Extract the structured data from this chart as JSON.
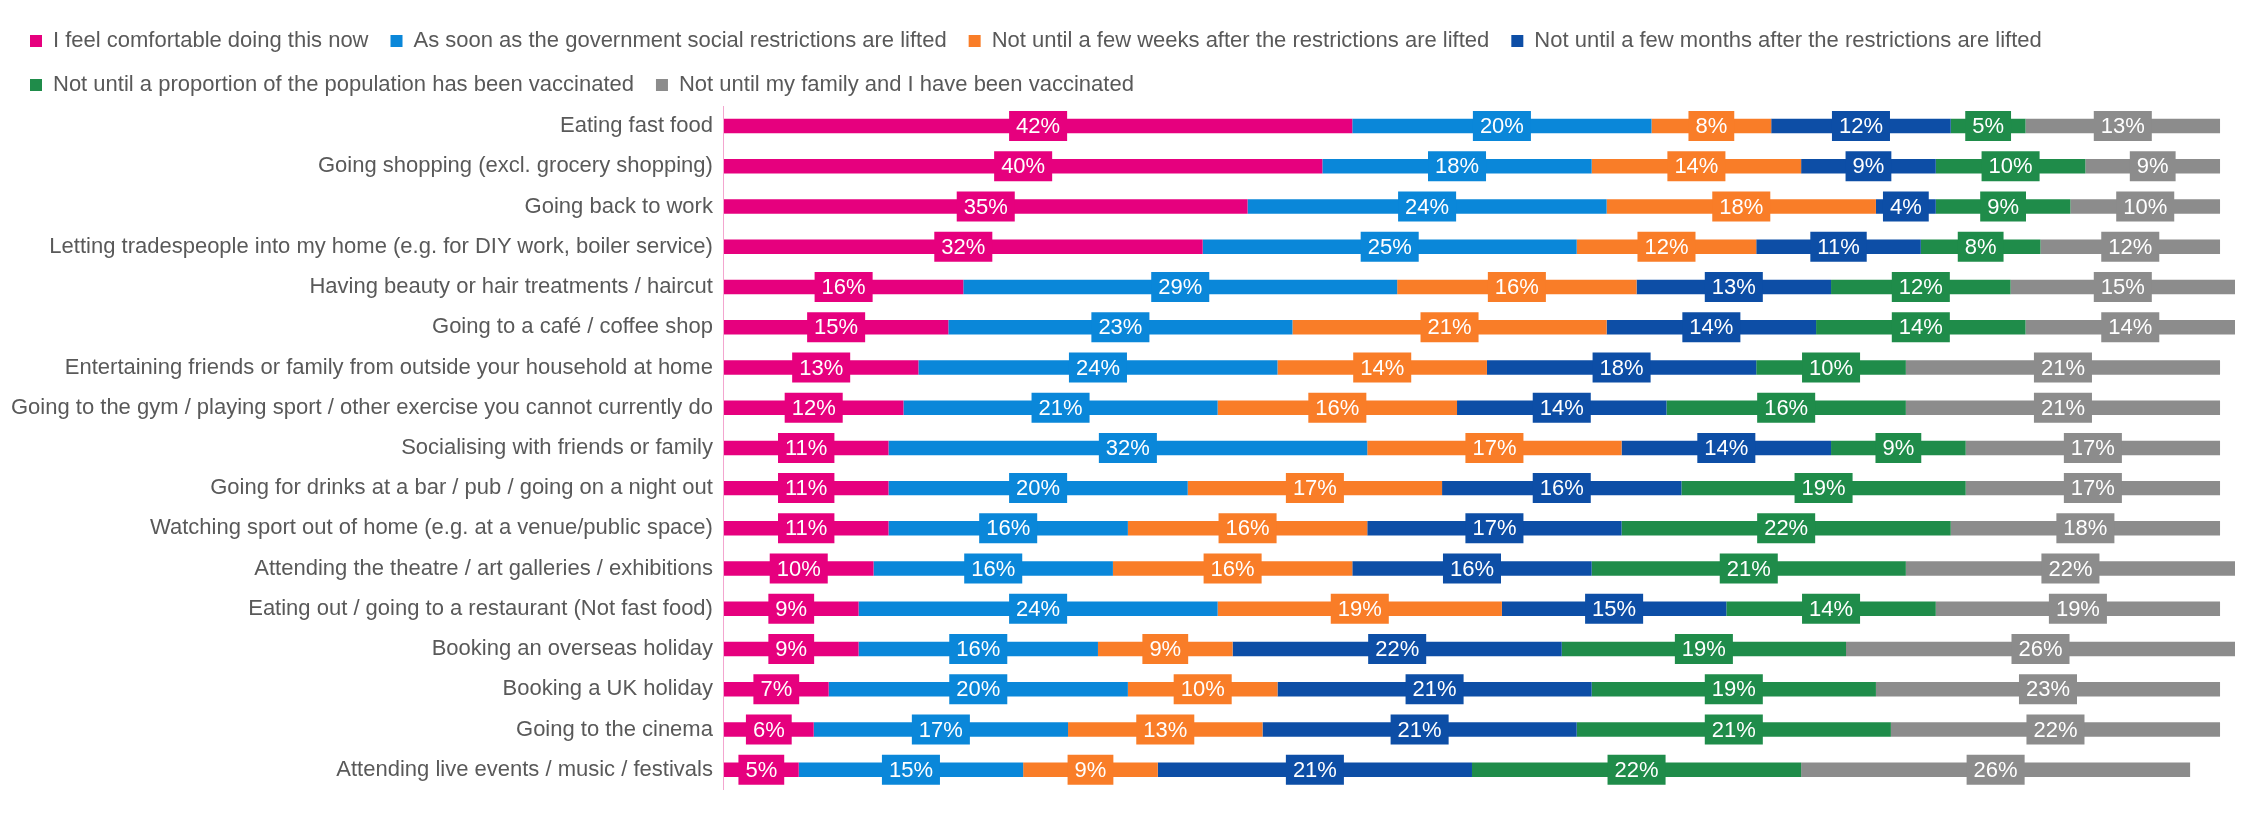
{
  "chart_data": {
    "type": "bar",
    "orientation": "horizontal",
    "stacked": true,
    "legend": "top",
    "grid": false,
    "tick_labels": "y",
    "categories": [
      "Eating fast food",
      "Going shopping (excl. grocery shopping)",
      "Going back to work",
      "Letting tradespeople into my home (e.g. for DIY work, boiler service)",
      "Having beauty or hair treatments / haircut",
      "Going to a café / coffee shop",
      "Entertaining friends or family from outside your household at home",
      "Going to the gym / playing sport / other exercise you cannot currently do",
      "Socialising with friends or family",
      "Going for drinks at a bar / pub / going on a night out",
      "Watching sport out of home (e.g. at a venue/public space)",
      "Attending the theatre / art galleries / exhibitions",
      "Eating out / going to a restaurant (Not fast food)",
      "Booking an overseas holiday",
      "Booking a UK holiday",
      "Going to the cinema",
      "Attending live events / music / festivals"
    ],
    "series": [
      {
        "name": "I feel comfortable doing this now",
        "color": "#e6007e",
        "values": [
          42,
          40,
          35,
          32,
          16,
          15,
          13,
          12,
          11,
          11,
          11,
          10,
          9,
          9,
          7,
          6,
          5
        ],
        "value_labels": [
          "42%",
          "40%",
          "35%",
          "32%",
          "16%",
          "15%",
          "13%",
          "12%",
          "11%",
          "11%",
          "11%",
          "10%",
          "9%",
          "9%",
          "7%",
          "6%",
          "5%"
        ]
      },
      {
        "name": "As soon as the government social restrictions are lifted",
        "color": "#0a87d9",
        "values": [
          20,
          18,
          24,
          25,
          29,
          23,
          24,
          21,
          32,
          20,
          16,
          16,
          24,
          16,
          20,
          17,
          15
        ],
        "value_labels": [
          "20%",
          "18%",
          "24%",
          "25%",
          "29%",
          "23%",
          "24%",
          "21%",
          "32%",
          "20%",
          "16%",
          "16%",
          "24%",
          "16%",
          "20%",
          "17%",
          "15%"
        ]
      },
      {
        "name": "Not until a few weeks after the restrictions are lifted",
        "color": "#f97d28",
        "values": [
          8,
          14,
          18,
          12,
          16,
          21,
          14,
          16,
          17,
          17,
          16,
          16,
          19,
          9,
          10,
          13,
          9
        ],
        "value_labels": [
          "8%",
          "14%",
          "18%",
          "12%",
          "16%",
          "21%",
          "14%",
          "16%",
          "17%",
          "17%",
          "16%",
          "16%",
          "19%",
          "9%",
          "10%",
          "13%",
          "9%"
        ]
      },
      {
        "name": "Not until a few months after the restrictions are lifted",
        "color": "#0d4ea6",
        "values": [
          12,
          9,
          4,
          11,
          13,
          14,
          18,
          14,
          14,
          16,
          17,
          16,
          15,
          22,
          21,
          21,
          21
        ],
        "value_labels": [
          "12%",
          "9%",
          "4%",
          "11%",
          "13%",
          "14%",
          "18%",
          "14%",
          "14%",
          "16%",
          "17%",
          "16%",
          "15%",
          "22%",
          "21%",
          "21%",
          "21%"
        ]
      },
      {
        "name": "Not until a proportion of the population has been vaccinated",
        "color": "#1f8c4a",
        "values": [
          5,
          10,
          9,
          8,
          12,
          14,
          10,
          16,
          9,
          19,
          22,
          21,
          14,
          19,
          19,
          21,
          22
        ],
        "value_labels": [
          "5%",
          "10%",
          "9%",
          "8%",
          "12%",
          "14%",
          "10%",
          "16%",
          "9%",
          "19%",
          "22%",
          "21%",
          "14%",
          "19%",
          "19%",
          "21%",
          "22%"
        ]
      },
      {
        "name": "Not until my family and I have been vaccinated",
        "color": "#8c8c8c",
        "values": [
          13,
          9,
          10,
          12,
          15,
          14,
          21,
          21,
          17,
          17,
          18,
          22,
          19,
          26,
          23,
          22,
          26
        ],
        "value_labels": [
          "13%",
          "9%",
          "10%",
          "12%",
          "15%",
          "14%",
          "21%",
          "21%",
          "17%",
          "17%",
          "18%",
          "22%",
          "19%",
          "26%",
          "23%",
          "22%",
          "26%"
        ]
      }
    ]
  }
}
